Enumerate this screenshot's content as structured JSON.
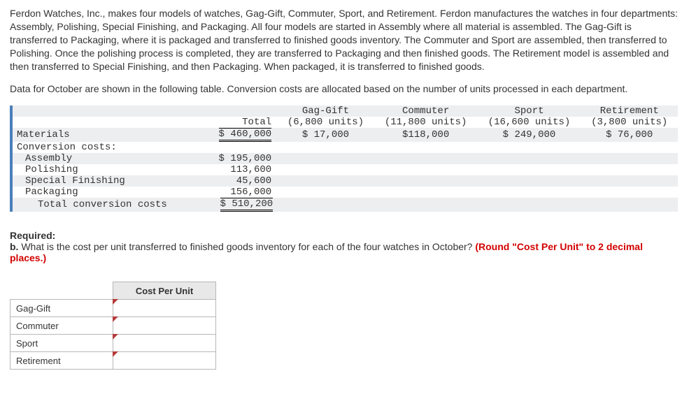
{
  "intro": {
    "p1": "Ferdon Watches, Inc., makes four models of watches, Gag-Gift, Commuter, Sport, and Retirement. Ferdon manufactures the watches in four departments: Assembly, Polishing, Special Finishing, and Packaging. All four models are started in Assembly where all material is assembled. The Gag-Gift is transferred to Packaging, where it is packaged and transferred to finished goods inventory. The Commuter and Sport are assembled, then transferred to Polishing. Once the polishing process is completed, they are transferred to Packaging and then finished goods. The Retirement model is assembled and then transferred to Special Finishing, and then Packaging. When packaged, it is transferred to finished goods.",
    "p2": "Data for October are shown in the following table. Conversion costs are allocated based on the number of units processed in each department."
  },
  "table": {
    "headers": {
      "total": "Total",
      "gag": {
        "name": "Gag-Gift",
        "units": "(6,800 units)"
      },
      "com": {
        "name": "Commuter",
        "units": "(11,800 units)"
      },
      "spo": {
        "name": "Sport",
        "units": "(16,600 units)"
      },
      "ret": {
        "name": "Retirement",
        "units": "(3,800 units)"
      }
    },
    "rows": {
      "materials": {
        "label": "Materials",
        "total": "$ 460,000",
        "gag": "$ 17,000",
        "com": "$118,000",
        "spo": "$ 249,000",
        "ret": "$ 76,000"
      },
      "conv_label": "Conversion costs:",
      "assembly": {
        "label": "Assembly",
        "total": "$ 195,000"
      },
      "polishing": {
        "label": "Polishing",
        "total": "113,600"
      },
      "specfin": {
        "label": "Special Finishing",
        "total": "45,600"
      },
      "packaging": {
        "label": "Packaging",
        "total": "156,000"
      },
      "totalconv": {
        "label": "Total conversion costs",
        "total": "$ 510,200"
      }
    }
  },
  "required": {
    "heading": "Required:",
    "b_prefix": "b. ",
    "b_text": "What is the cost per unit transferred to finished goods inventory for each of the four watches in October? ",
    "b_red": "(Round \"Cost Per Unit\" to 2 decimal places.)"
  },
  "answer": {
    "header": "Cost Per Unit",
    "rows": [
      "Gag-Gift",
      "Commuter",
      "Sport",
      "Retirement"
    ]
  }
}
